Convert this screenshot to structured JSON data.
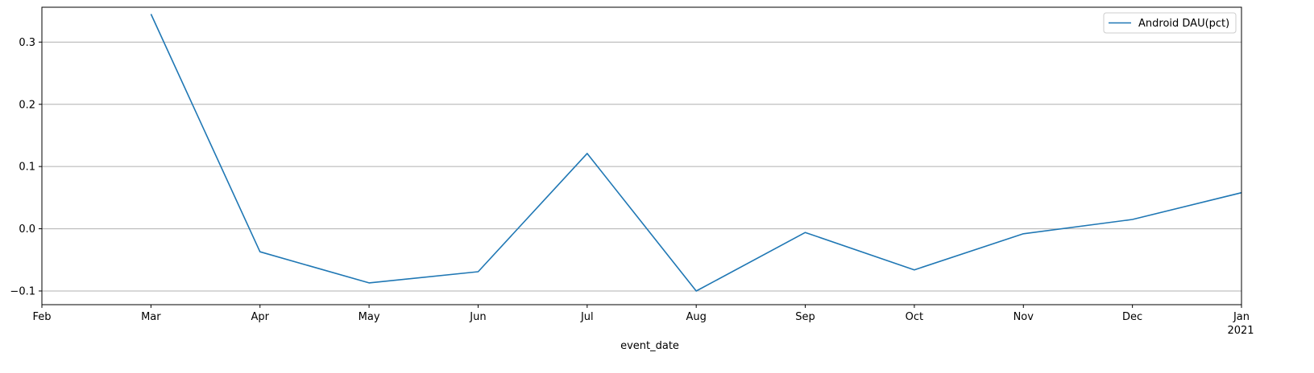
{
  "chart_data": {
    "type": "line",
    "xlabel": "event_date",
    "ylabel": "",
    "x": [
      "Mar",
      "Apr",
      "May",
      "Jun",
      "Jul",
      "Aug",
      "Sep",
      "Oct",
      "Nov",
      "Dec",
      "Jan"
    ],
    "x_ticks": [
      "Feb",
      "Mar",
      "Apr",
      "May",
      "Jun",
      "Jul",
      "Aug",
      "Sep",
      "Oct",
      "Nov",
      "Dec",
      "Jan"
    ],
    "x_year_label": "2021",
    "y_ticks": [
      "0.3",
      "0.2",
      "0.1",
      "0.0",
      "−0.1"
    ],
    "ylim": [
      -0.122,
      0.356
    ],
    "grid": "horizontal",
    "legend_position": "top-right",
    "series": [
      {
        "name": "Android DAU(pct)",
        "color": "#1f77b4",
        "values": [
          0.345,
          -0.037,
          -0.087,
          -0.069,
          0.121,
          -0.1,
          -0.006,
          -0.066,
          -0.008,
          0.015,
          0.058
        ]
      }
    ]
  }
}
